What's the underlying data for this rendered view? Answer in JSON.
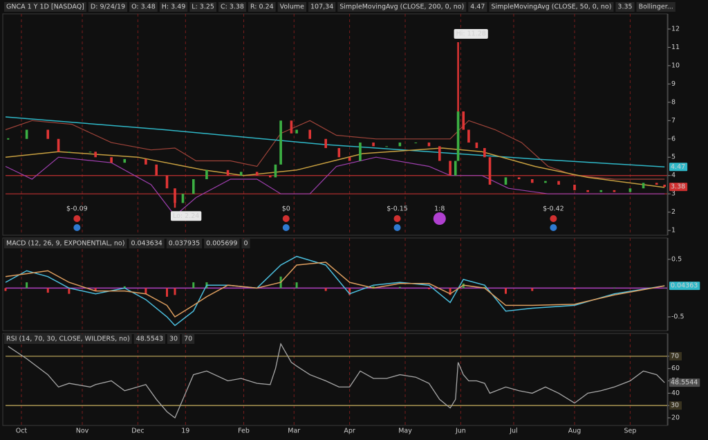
{
  "chart_data": [
    {
      "type": "candlestick",
      "title": "GNCA 1 Y 1D [NASDAQ]",
      "info": [
        "D: 9/24/19",
        "O: 3.48",
        "H: 3.49",
        "L: 3.25",
        "C: 3.38",
        "R: 0.24",
        "Volume",
        "107,34"
      ],
      "xlim": [
        0,
        250
      ],
      "ylim": [
        0.74,
        12.83
      ],
      "yticks": [
        1,
        2,
        3,
        4,
        5,
        6,
        7,
        8,
        9,
        10,
        11,
        12
      ],
      "up_color": "#3cb043",
      "down_color": "#e03535",
      "x": [
        1,
        8,
        16,
        20,
        24,
        32,
        34,
        40,
        45,
        53,
        57,
        61,
        64,
        67,
        71,
        76,
        84,
        89,
        95,
        100,
        102,
        104,
        108,
        110,
        115,
        121,
        126,
        130,
        134,
        139,
        144,
        149,
        155,
        160,
        164,
        168,
        170,
        171,
        173,
        175,
        178,
        181,
        183,
        189,
        194,
        199,
        204,
        209,
        215,
        220,
        225,
        230,
        236,
        241,
        246,
        249
      ],
      "close": [
        6.0,
        6.5,
        6.0,
        5.3,
        5.3,
        5.3,
        5.0,
        4.7,
        4.9,
        4.6,
        4.0,
        3.3,
        2.5,
        3.0,
        3.8,
        4.3,
        4.0,
        4.2,
        4.0,
        3.9,
        4.6,
        7.0,
        6.3,
        6.5,
        6.0,
        5.5,
        5.0,
        4.8,
        5.8,
        5.6,
        5.6,
        5.8,
        5.8,
        5.6,
        4.8,
        4.0,
        4.8,
        7.5,
        6.5,
        5.8,
        5.5,
        5.0,
        3.5,
        3.9,
        3.8,
        3.6,
        3.7,
        3.5,
        3.2,
        3.1,
        3.2,
        3.1,
        3.3,
        3.6,
        3.5,
        3.38
      ],
      "overlays": [
        {
          "name": "SimpleMovingAvg (CLOSE, 200, 0, no)",
          "value": 4.47,
          "color": "#2fb8c8",
          "x": [
            0,
            60,
            120,
            170,
            200,
            249
          ],
          "values": [
            7.2,
            6.5,
            5.7,
            5.2,
            4.9,
            4.47
          ]
        },
        {
          "name": "SimpleMovingAvg (CLOSE, 50, 0, no)",
          "value": 3.35,
          "color": "#c8a040",
          "x": [
            0,
            20,
            50,
            75,
            90,
            110,
            135,
            165,
            180,
            200,
            220,
            249
          ],
          "values": [
            5.0,
            5.3,
            5.0,
            4.3,
            4.0,
            4.3,
            5.2,
            5.5,
            5.3,
            4.5,
            3.9,
            3.35
          ]
        }
      ],
      "bollinger": {
        "name": "Bollinger...",
        "bands": [
          {
            "color": "#a0443a",
            "x": [
              0,
              10,
              25,
              40,
              55,
              64,
              72,
              85,
              95,
              104,
              115,
              125,
              140,
              160,
              168,
              175,
              185,
              195,
              205,
              215,
              230,
              249
            ],
            "values": [
              6.5,
              7.0,
              6.8,
              5.8,
              5.4,
              5.5,
              4.8,
              4.8,
              4.5,
              6.3,
              7.0,
              6.2,
              6.0,
              6.0,
              6.0,
              7.0,
              6.5,
              5.8,
              4.5,
              4.0,
              3.8,
              3.8
            ]
          },
          {
            "color": "#a040b0",
            "x": [
              0,
              10,
              20,
              40,
              55,
              64,
              72,
              85,
              95,
              104,
              115,
              125,
              140,
              160,
              168,
              180,
              190,
              205,
              220,
              249
            ],
            "values": [
              4.5,
              3.8,
              5.0,
              4.7,
              3.5,
              1.8,
              2.8,
              3.8,
              3.8,
              3.0,
              3.0,
              4.5,
              5.0,
              4.5,
              4.0,
              4.0,
              3.3,
              3.0,
              3.0,
              3.0
            ]
          }
        ]
      },
      "levels": [
        4,
        3
      ],
      "level_color": "#c03030",
      "annotations": [
        {
          "label": "Hi: 11.28",
          "x": 171,
          "value": 11.28
        },
        {
          "label": "Lo: 2.24",
          "x": 64,
          "value": 2.24
        }
      ],
      "events": [
        {
          "x": 27,
          "label": "$-0.09",
          "icon_color": "#d03030"
        },
        {
          "x": 106,
          "label": "$0",
          "icon_color": "#d03030"
        },
        {
          "x": 148,
          "label": "$-0.15",
          "icon_color": "#d03030"
        },
        {
          "x": 164,
          "label": "1:8",
          "icon_color": "#b040d0"
        },
        {
          "x": 207,
          "label": "$-0.42",
          "icon_color": "#d03030"
        }
      ]
    },
    {
      "type": "line",
      "title": "MACD (12, 26, 9, EXPONENTIAL, no)",
      "readouts": [
        {
          "text": "0.043634",
          "color": "#4cc0e0"
        },
        {
          "text": "0.037935",
          "color": "#e0a060"
        },
        {
          "text": "0.005699",
          "color": "#3cb043"
        },
        {
          "text": "0",
          "color": "#c050d0"
        }
      ],
      "value_tag": "0.04363",
      "xlim": [
        0,
        250
      ],
      "ylim": [
        -0.74,
        0.87
      ],
      "yticks": [
        0.5,
        -0.5
      ],
      "zero_color": "#b040c0",
      "x": [
        0,
        8,
        16,
        24,
        34,
        45,
        53,
        61,
        64,
        71,
        76,
        84,
        95,
        104,
        110,
        121,
        130,
        139,
        149,
        160,
        168,
        173,
        181,
        189,
        199,
        215,
        230,
        249
      ],
      "series": [
        {
          "color": "#4cc0e0",
          "values": [
            0.1,
            0.3,
            0.2,
            0.0,
            -0.1,
            0.0,
            -0.2,
            -0.5,
            -0.65,
            -0.4,
            0.05,
            0.05,
            0.0,
            0.4,
            0.55,
            0.4,
            -0.1,
            0.05,
            0.1,
            0.05,
            -0.25,
            0.15,
            0.05,
            -0.4,
            -0.35,
            -0.3,
            -0.1,
            0.04
          ]
        },
        {
          "color": "#e0a060",
          "values": [
            0.2,
            0.25,
            0.3,
            0.1,
            -0.05,
            -0.05,
            -0.1,
            -0.3,
            -0.5,
            -0.3,
            -0.15,
            0.05,
            0.0,
            0.1,
            0.4,
            0.45,
            0.1,
            0.0,
            0.08,
            0.08,
            -0.1,
            0.05,
            0.0,
            -0.3,
            -0.3,
            -0.28,
            -0.12,
            0.04
          ]
        }
      ],
      "histogram": {
        "up_color": "#3cb043",
        "down_color": "#e03535",
        "values": [
          -0.05,
          0.1,
          -0.08,
          -0.1,
          -0.05,
          0.03,
          -0.1,
          -0.15,
          -0.12,
          0.1,
          0.1,
          0,
          0,
          0.2,
          0.1,
          -0.05,
          -0.12,
          0.03,
          0.02,
          -0.02,
          -0.12,
          0.08,
          0.02,
          -0.1,
          -0.05,
          -0.02,
          0.01,
          0.005699
        ]
      }
    },
    {
      "type": "line",
      "title": "RSI (14, 70, 30, CLOSE, WILDERS, no)",
      "readouts": [
        {
          "text": "48.5543",
          "color": "#cfcfcf"
        },
        {
          "text": "30",
          "color": "#e0c060"
        },
        {
          "text": "70",
          "color": "#e0c060"
        }
      ],
      "value_tag": "48.5544",
      "xlim": [
        0,
        250
      ],
      "ylim": [
        13.8,
        88.5
      ],
      "yticks": [
        20,
        30,
        40,
        50,
        60,
        70
      ],
      "levels": [
        70,
        30
      ],
      "level_color": "#c8b060",
      "color": "#a8a8a8",
      "x": [
        1,
        8,
        16,
        20,
        24,
        32,
        34,
        40,
        45,
        53,
        57,
        61,
        64,
        67,
        71,
        76,
        84,
        89,
        95,
        100,
        102,
        104,
        108,
        110,
        115,
        121,
        126,
        130,
        134,
        139,
        144,
        149,
        155,
        160,
        164,
        168,
        170,
        171,
        173,
        175,
        178,
        181,
        183,
        189,
        194,
        199,
        204,
        209,
        215,
        220,
        225,
        230,
        236,
        241,
        246,
        249
      ],
      "values": [
        78,
        68,
        55,
        45,
        48,
        45,
        47,
        50,
        42,
        47,
        35,
        25,
        20,
        35,
        55,
        58,
        50,
        52,
        48,
        47,
        60,
        80,
        65,
        62,
        55,
        50,
        45,
        45,
        58,
        52,
        52,
        55,
        53,
        48,
        35,
        28,
        35,
        65,
        55,
        50,
        50,
        48,
        40,
        45,
        42,
        40,
        45,
        40,
        32,
        40,
        42,
        45,
        50,
        58,
        55,
        48.55
      ],
      "xticks": [
        {
          "value": 6,
          "label": "Oct"
        },
        {
          "value": 29,
          "label": "Nov"
        },
        {
          "value": 50,
          "label": "Dec"
        },
        {
          "value": 68,
          "label": "19"
        },
        {
          "value": 90,
          "label": "Feb"
        },
        {
          "value": 109,
          "label": "Mar"
        },
        {
          "value": 130,
          "label": "Apr"
        },
        {
          "value": 151,
          "label": "May"
        },
        {
          "value": 172,
          "label": "Jun"
        },
        {
          "value": 192,
          "label": "Jul"
        },
        {
          "value": 215,
          "label": "Aug"
        },
        {
          "value": 236,
          "label": "Sep"
        }
      ]
    }
  ]
}
